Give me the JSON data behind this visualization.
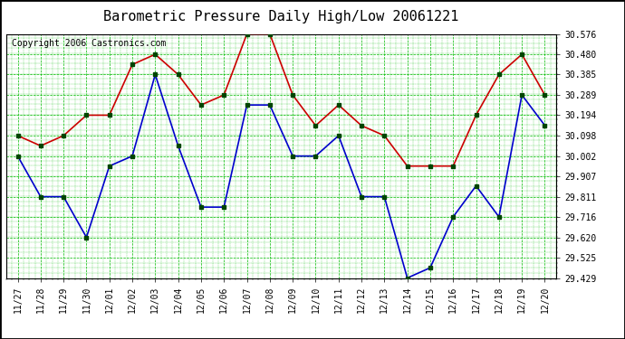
{
  "title": "Barometric Pressure Daily High/Low 20061221",
  "copyright": "Copyright 2006 Castronics.com",
  "labels": [
    "11/27",
    "11/28",
    "11/29",
    "11/30",
    "12/01",
    "12/02",
    "12/03",
    "12/04",
    "12/05",
    "12/06",
    "12/07",
    "12/08",
    "12/09",
    "12/10",
    "12/11",
    "12/12",
    "12/13",
    "12/14",
    "12/15",
    "12/16",
    "12/17",
    "12/18",
    "12/19",
    "12/20"
  ],
  "highs": [
    30.098,
    30.05,
    30.098,
    30.194,
    30.194,
    30.432,
    30.48,
    30.385,
    30.242,
    30.289,
    30.576,
    30.576,
    30.289,
    30.145,
    30.242,
    30.145,
    30.098,
    29.955,
    29.955,
    29.955,
    30.194,
    30.385,
    30.48,
    30.289
  ],
  "lows": [
    30.002,
    29.811,
    29.811,
    29.62,
    29.955,
    30.002,
    30.385,
    30.05,
    29.762,
    29.762,
    30.242,
    30.242,
    30.002,
    30.002,
    30.098,
    29.811,
    29.811,
    29.429,
    29.477,
    29.716,
    29.862,
    29.716,
    30.289,
    30.146
  ],
  "high_color": "#cc0000",
  "low_color": "#0000cc",
  "marker_color": "#004400",
  "grid_color": "#00bb00",
  "bg_color": "#ffffff",
  "plot_bg_color": "#ffffff",
  "ylim_min": 29.429,
  "ylim_max": 30.576,
  "yticks": [
    29.429,
    29.525,
    29.62,
    29.716,
    29.811,
    29.907,
    30.002,
    30.098,
    30.194,
    30.289,
    30.385,
    30.48,
    30.576
  ],
  "title_fontsize": 11,
  "copyright_fontsize": 7,
  "tick_fontsize": 7,
  "line_width": 1.2,
  "marker_size": 3
}
